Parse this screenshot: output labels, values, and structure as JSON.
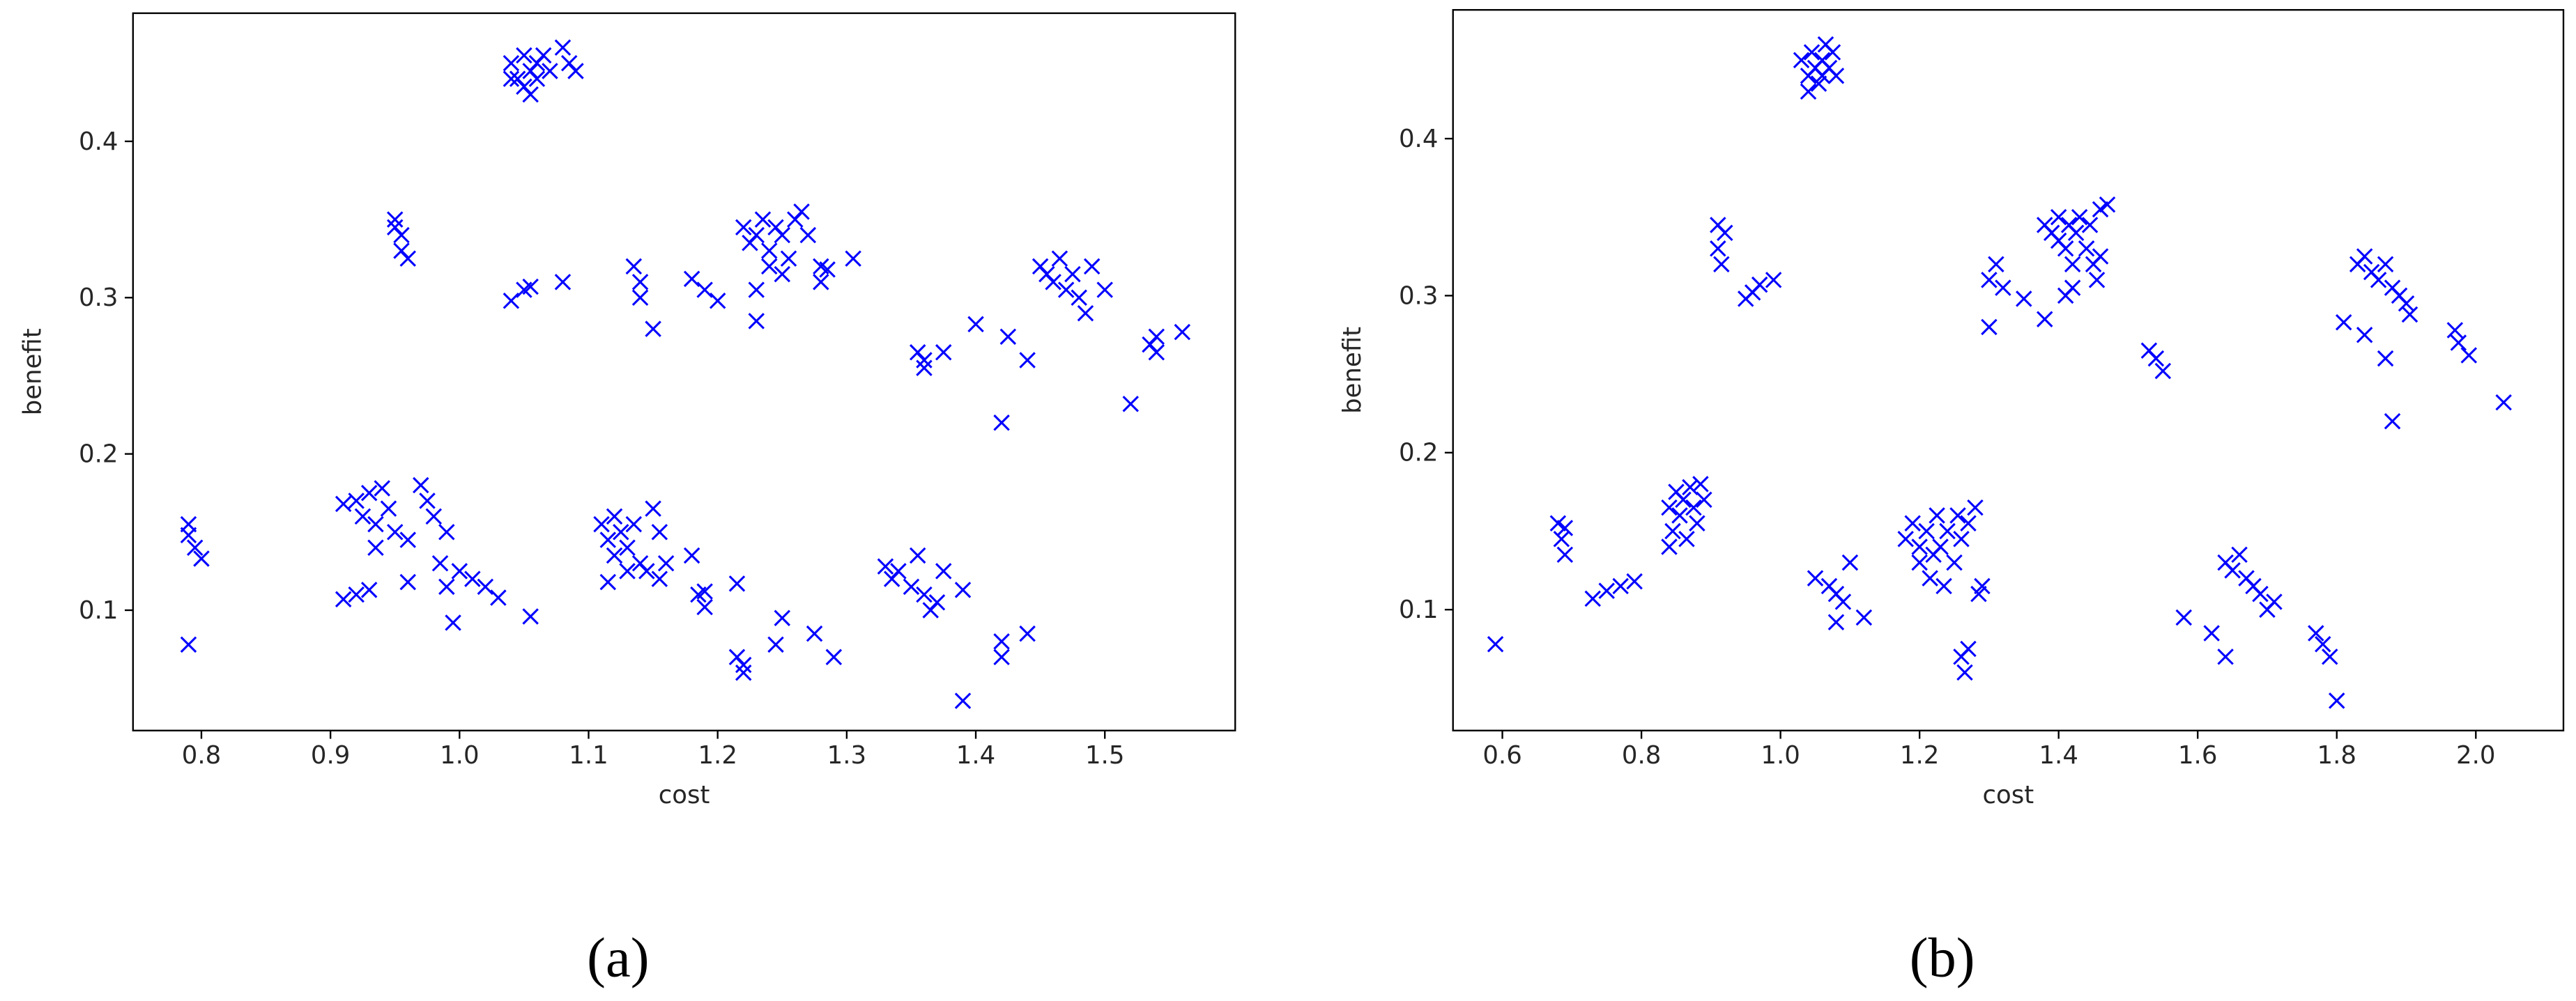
{
  "chart_data": [
    {
      "type": "scatter",
      "caption": "(a)",
      "x_label": "cost",
      "y_label": "benefit",
      "color": "#0000ff",
      "marker": "x",
      "xlim": [
        0.747,
        1.601
      ],
      "ylim": [
        0.023,
        0.482
      ],
      "xticks": [
        0.8,
        0.9,
        {
          "value": 1,
          "label": "1.0"
        },
        1.1,
        1.2,
        1.3,
        1.4,
        1.5
      ],
      "yticks": [
        0.1,
        0.2,
        0.3,
        0.4
      ],
      "x": [
        1.04,
        1.045,
        1.05,
        1.05,
        1.055,
        1.06,
        1.06,
        1.065,
        1.04,
        1.07,
        1.08,
        1.085,
        1.09,
        1.055,
        0.95,
        0.955,
        0.955,
        0.96,
        0.95,
        1.04,
        1.05,
        1.055,
        1.08,
        1.135,
        1.14,
        1.14,
        1.15,
        1.18,
        1.19,
        1.2,
        1.22,
        1.225,
        1.23,
        1.235,
        1.24,
        1.245,
        1.25,
        1.255,
        1.26,
        1.265,
        1.27,
        1.24,
        1.23,
        1.23,
        1.28,
        1.28,
        1.285,
        1.305,
        1.25,
        1.355,
        1.36,
        1.36,
        1.375,
        1.4,
        1.425,
        1.42,
        1.44,
        1.45,
        1.455,
        1.46,
        1.465,
        1.47,
        1.48,
        1.485,
        1.49,
        1.5,
        1.475,
        1.52,
        1.535,
        1.54,
        1.54,
        1.56,
        0.79,
        0.79,
        0.795,
        0.8,
        0.79,
        0.91,
        0.92,
        0.925,
        0.93,
        0.935,
        0.94,
        0.945,
        0.95,
        0.96,
        0.935,
        0.97,
        0.975,
        0.98,
        0.99,
        0.985,
        0.99,
        1.0,
        1.01,
        1.02,
        1.03,
        0.995,
        0.91,
        0.92,
        0.93,
        0.96,
        1.055,
        1.11,
        1.115,
        1.12,
        1.12,
        1.125,
        1.13,
        1.135,
        1.14,
        1.145,
        1.15,
        1.155,
        1.16,
        1.155,
        1.115,
        1.13,
        1.18,
        1.185,
        1.19,
        1.19,
        1.215,
        1.215,
        1.22,
        1.22,
        1.245,
        1.25,
        1.275,
        1.29,
        1.33,
        1.335,
        1.34,
        1.35,
        1.355,
        1.36,
        1.365,
        1.37,
        1.375,
        1.39,
        1.39,
        1.42,
        1.42,
        1.44
      ],
      "values": [
        0.45,
        0.44,
        0.455,
        0.435,
        0.445,
        0.45,
        0.44,
        0.455,
        0.44,
        0.445,
        0.46,
        0.45,
        0.445,
        0.43,
        0.345,
        0.34,
        0.33,
        0.325,
        0.35,
        0.298,
        0.305,
        0.307,
        0.31,
        0.32,
        0.31,
        0.3,
        0.28,
        0.312,
        0.305,
        0.298,
        0.345,
        0.335,
        0.34,
        0.35,
        0.33,
        0.345,
        0.34,
        0.325,
        0.35,
        0.355,
        0.34,
        0.32,
        0.305,
        0.285,
        0.32,
        0.31,
        0.318,
        0.325,
        0.315,
        0.265,
        0.255,
        0.26,
        0.265,
        0.283,
        0.275,
        0.22,
        0.26,
        0.32,
        0.315,
        0.31,
        0.325,
        0.305,
        0.3,
        0.29,
        0.32,
        0.305,
        0.315,
        0.232,
        0.27,
        0.265,
        0.275,
        0.278,
        0.155,
        0.148,
        0.14,
        0.133,
        0.078,
        0.168,
        0.17,
        0.16,
        0.175,
        0.155,
        0.178,
        0.165,
        0.15,
        0.145,
        0.14,
        0.18,
        0.17,
        0.16,
        0.15,
        0.13,
        0.115,
        0.125,
        0.12,
        0.115,
        0.108,
        0.092,
        0.107,
        0.11,
        0.113,
        0.118,
        0.096,
        0.155,
        0.145,
        0.16,
        0.135,
        0.15,
        0.14,
        0.155,
        0.13,
        0.125,
        0.165,
        0.15,
        0.13,
        0.12,
        0.118,
        0.125,
        0.135,
        0.11,
        0.102,
        0.112,
        0.117,
        0.07,
        0.06,
        0.065,
        0.078,
        0.095,
        0.085,
        0.07,
        0.128,
        0.12,
        0.125,
        0.115,
        0.135,
        0.11,
        0.1,
        0.105,
        0.125,
        0.113,
        0.042,
        0.08,
        0.07,
        0.085
      ]
    },
    {
      "type": "scatter",
      "caption": "(b)",
      "x_label": "cost",
      "y_label": "benefit",
      "color": "#0000ff",
      "marker": "x",
      "xlim": [
        0.529,
        2.126
      ],
      "ylim": [
        0.023,
        0.482
      ],
      "xticks": [
        0.6,
        0.8,
        {
          "value": 1,
          "label": "1.0"
        },
        1.2,
        1.4,
        1.6,
        1.8,
        {
          "value": 2,
          "label": "2.0"
        }
      ],
      "yticks": [
        0.1,
        0.2,
        0.3,
        0.4
      ],
      "x": [
        1.03,
        1.04,
        1.045,
        1.05,
        1.055,
        1.06,
        1.065,
        1.07,
        1.075,
        1.08,
        1.04,
        1.06,
        0.91,
        0.91,
        0.915,
        0.92,
        0.95,
        0.96,
        0.97,
        0.99,
        1.3,
        1.3,
        1.31,
        1.32,
        1.35,
        1.38,
        1.38,
        1.39,
        1.4,
        1.4,
        1.41,
        1.415,
        1.42,
        1.425,
        1.43,
        1.44,
        1.445,
        1.45,
        1.455,
        1.46,
        1.47,
        1.42,
        1.41,
        1.46,
        1.53,
        1.54,
        1.55,
        1.83,
        1.84,
        1.85,
        1.86,
        1.87,
        1.88,
        1.89,
        1.9,
        1.905,
        1.81,
        1.84,
        1.87,
        1.88,
        1.97,
        1.975,
        1.99,
        2.04,
        0.59,
        0.68,
        0.685,
        0.69,
        0.69,
        0.73,
        0.75,
        0.77,
        0.79,
        0.84,
        0.845,
        0.85,
        0.855,
        0.86,
        0.865,
        0.87,
        0.875,
        0.88,
        0.885,
        0.89,
        0.84,
        1.05,
        1.07,
        1.08,
        1.08,
        1.09,
        1.1,
        1.12,
        1.18,
        1.19,
        1.2,
        1.2,
        1.21,
        1.215,
        1.22,
        1.225,
        1.23,
        1.235,
        1.24,
        1.25,
        1.255,
        1.26,
        1.27,
        1.28,
        1.285,
        1.29,
        1.26,
        1.265,
        1.27,
        1.58,
        1.62,
        1.64,
        1.64,
        1.65,
        1.66,
        1.67,
        1.68,
        1.69,
        1.7,
        1.71,
        1.77,
        1.78,
        1.79,
        1.8
      ],
      "values": [
        0.45,
        0.44,
        0.455,
        0.445,
        0.435,
        0.45,
        0.46,
        0.445,
        0.455,
        0.44,
        0.43,
        0.44,
        0.345,
        0.33,
        0.32,
        0.34,
        0.298,
        0.302,
        0.307,
        0.31,
        0.28,
        0.31,
        0.32,
        0.305,
        0.298,
        0.285,
        0.345,
        0.34,
        0.335,
        0.35,
        0.33,
        0.345,
        0.32,
        0.34,
        0.35,
        0.33,
        0.345,
        0.32,
        0.31,
        0.355,
        0.358,
        0.305,
        0.3,
        0.325,
        0.265,
        0.26,
        0.252,
        0.32,
        0.325,
        0.315,
        0.31,
        0.32,
        0.305,
        0.3,
        0.295,
        0.288,
        0.283,
        0.275,
        0.26,
        0.22,
        0.278,
        0.27,
        0.262,
        0.232,
        0.078,
        0.155,
        0.145,
        0.135,
        0.152,
        0.107,
        0.112,
        0.115,
        0.118,
        0.165,
        0.15,
        0.175,
        0.16,
        0.17,
        0.145,
        0.178,
        0.165,
        0.155,
        0.18,
        0.17,
        0.14,
        0.12,
        0.115,
        0.11,
        0.092,
        0.105,
        0.13,
        0.095,
        0.145,
        0.155,
        0.14,
        0.13,
        0.15,
        0.12,
        0.135,
        0.16,
        0.14,
        0.115,
        0.15,
        0.13,
        0.16,
        0.145,
        0.155,
        0.165,
        0.11,
        0.115,
        0.07,
        0.06,
        0.075,
        0.095,
        0.085,
        0.07,
        0.13,
        0.125,
        0.135,
        0.12,
        0.115,
        0.11,
        0.1,
        0.105,
        0.085,
        0.078,
        0.07,
        0.042
      ]
    }
  ]
}
